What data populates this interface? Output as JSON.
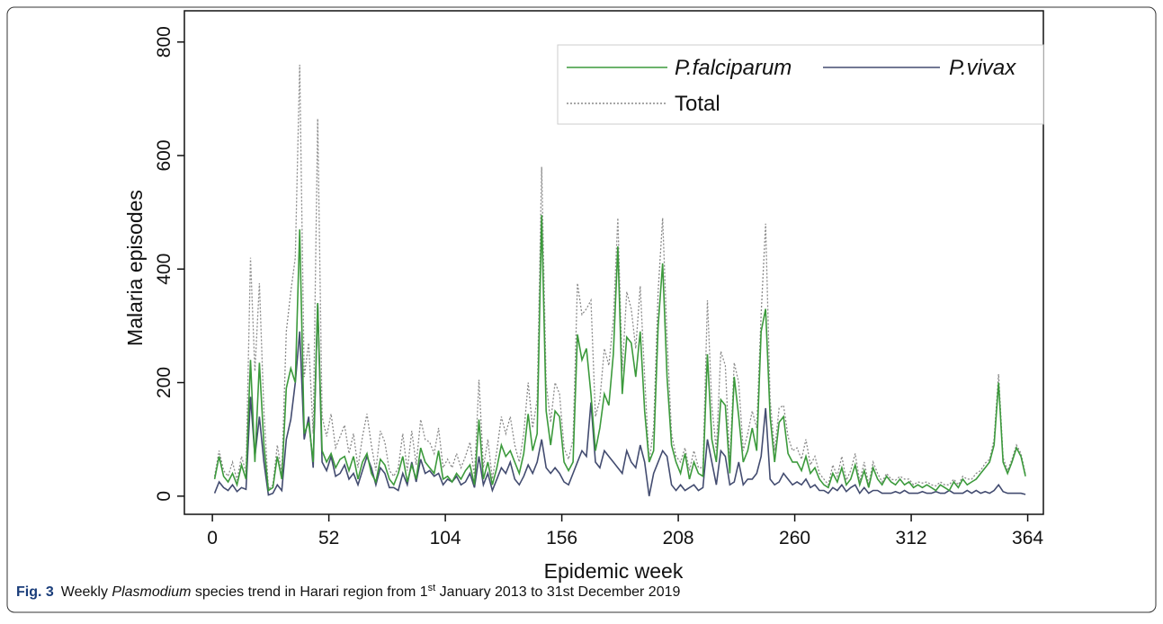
{
  "chart_data": {
    "type": "line",
    "xlabel": "Epidemic week",
    "ylabel": "Malaria episodes",
    "xlim": [
      -12.5,
      371
    ],
    "ylim": [
      -32,
      855
    ],
    "xticks": [
      0,
      52,
      104,
      156,
      208,
      260,
      312,
      364
    ],
    "yticks": [
      0,
      200,
      400,
      600,
      800
    ],
    "legend": "upper right",
    "caption": {
      "label": "Fig. 3",
      "before": "Weekly ",
      "italic": "Plasmodium",
      "middle": " species trend in Harari region from 1",
      "sup": "st",
      "after": " January 2013 to 31st December 2019"
    },
    "x": [
      1,
      3,
      5,
      7,
      9,
      11,
      13,
      15,
      17,
      19,
      21,
      23,
      25,
      27,
      29,
      31,
      33,
      35,
      37,
      39,
      41,
      43,
      45,
      47,
      49,
      51,
      53,
      55,
      57,
      59,
      61,
      63,
      65,
      67,
      69,
      71,
      73,
      75,
      77,
      79,
      81,
      83,
      85,
      87,
      89,
      91,
      93,
      95,
      97,
      99,
      101,
      103,
      105,
      107,
      109,
      111,
      113,
      115,
      117,
      119,
      121,
      123,
      125,
      127,
      129,
      131,
      133,
      135,
      137,
      139,
      141,
      143,
      145,
      147,
      149,
      151,
      153,
      155,
      157,
      159,
      161,
      163,
      165,
      167,
      169,
      171,
      173,
      175,
      177,
      179,
      181,
      183,
      185,
      187,
      189,
      191,
      193,
      195,
      197,
      199,
      201,
      203,
      205,
      207,
      209,
      211,
      213,
      215,
      217,
      219,
      221,
      223,
      225,
      227,
      229,
      231,
      233,
      235,
      237,
      239,
      241,
      243,
      245,
      247,
      249,
      251,
      253,
      255,
      257,
      259,
      261,
      263,
      265,
      267,
      269,
      271,
      273,
      275,
      277,
      279,
      281,
      283,
      285,
      287,
      289,
      291,
      293,
      295,
      297,
      299,
      301,
      303,
      305,
      307,
      309,
      311,
      313,
      315,
      317,
      319,
      321,
      323,
      325,
      327,
      329,
      331,
      333,
      335,
      337,
      339,
      341,
      343,
      345,
      347,
      349,
      351,
      353,
      355,
      357,
      359,
      361,
      363
    ],
    "series": [
      {
        "name": "P.falciparum",
        "color": "#3c9a3c",
        "style": "solid",
        "values": [
          30,
          70,
          35,
          25,
          40,
          20,
          55,
          30,
          240,
          60,
          235,
          90,
          10,
          15,
          70,
          30,
          190,
          225,
          200,
          470,
          110,
          130,
          60,
          340,
          80,
          60,
          75,
          50,
          65,
          70,
          45,
          70,
          30,
          60,
          75,
          40,
          25,
          65,
          55,
          30,
          20,
          40,
          70,
          25,
          55,
          30,
          85,
          60,
          50,
          40,
          80,
          30,
          35,
          25,
          40,
          30,
          45,
          55,
          20,
          135,
          30,
          60,
          20,
          50,
          90,
          70,
          80,
          60,
          40,
          75,
          145,
          80,
          110,
          495,
          150,
          90,
          150,
          140,
          60,
          45,
          60,
          285,
          240,
          260,
          180,
          80,
          120,
          180,
          160,
          250,
          440,
          180,
          280,
          270,
          210,
          290,
          150,
          60,
          80,
          300,
          410,
          210,
          90,
          60,
          40,
          75,
          30,
          60,
          40,
          35,
          250,
          100,
          60,
          170,
          160,
          40,
          210,
          140,
          60,
          80,
          120,
          80,
          290,
          330,
          140,
          60,
          130,
          140,
          75,
          60,
          60,
          45,
          70,
          40,
          50,
          30,
          20,
          15,
          40,
          25,
          50,
          20,
          30,
          55,
          20,
          45,
          15,
          50,
          30,
          20,
          35,
          25,
          20,
          30,
          20,
          25,
          15,
          20,
          15,
          20,
          15,
          10,
          20,
          15,
          10,
          25,
          15,
          30,
          20,
          25,
          30,
          40,
          50,
          60,
          90,
          200,
          60,
          40,
          60,
          85,
          70,
          35
        ]
      },
      {
        "name": "P.vivax",
        "color": "#434c70",
        "style": "solid",
        "values": [
          5,
          25,
          15,
          10,
          20,
          8,
          15,
          12,
          175,
          70,
          140,
          60,
          2,
          5,
          20,
          10,
          100,
          135,
          200,
          290,
          100,
          140,
          50,
          340,
          60,
          45,
          70,
          35,
          40,
          55,
          30,
          40,
          20,
          45,
          70,
          50,
          20,
          50,
          40,
          15,
          15,
          10,
          40,
          20,
          60,
          25,
          65,
          40,
          45,
          35,
          40,
          20,
          30,
          25,
          35,
          20,
          25,
          40,
          15,
          70,
          20,
          40,
          10,
          30,
          50,
          40,
          60,
          30,
          20,
          35,
          55,
          40,
          60,
          100,
          50,
          40,
          50,
          40,
          25,
          20,
          40,
          60,
          80,
          70,
          165,
          60,
          50,
          80,
          70,
          60,
          50,
          40,
          80,
          60,
          50,
          90,
          60,
          0,
          40,
          60,
          80,
          70,
          20,
          10,
          20,
          10,
          15,
          20,
          10,
          15,
          100,
          60,
          20,
          80,
          70,
          20,
          25,
          60,
          20,
          30,
          30,
          40,
          70,
          155,
          30,
          20,
          25,
          40,
          30,
          20,
          25,
          20,
          30,
          15,
          20,
          10,
          10,
          5,
          15,
          10,
          20,
          8,
          15,
          20,
          5,
          15,
          5,
          10,
          10,
          5,
          5,
          5,
          8,
          5,
          10,
          5,
          5,
          5,
          8,
          5,
          5,
          8,
          5,
          5,
          10,
          5,
          5,
          5,
          10,
          5,
          10,
          5,
          8,
          5,
          10,
          20,
          8,
          5,
          5,
          5,
          5,
          3
        ]
      },
      {
        "name": "Total",
        "color": "#8a8a8a",
        "style": "dotted",
        "values": [
          35,
          80,
          45,
          35,
          60,
          28,
          70,
          42,
          420,
          220,
          375,
          150,
          12,
          20,
          90,
          40,
          290,
          360,
          420,
          760,
          210,
          270,
          110,
          665,
          140,
          105,
          145,
          85,
          105,
          125,
          75,
          110,
          50,
          105,
          145,
          90,
          45,
          115,
          95,
          45,
          35,
          50,
          110,
          45,
          115,
          55,
          135,
          100,
          95,
          75,
          120,
          50,
          65,
          50,
          75,
          50,
          70,
          95,
          35,
          205,
          50,
          100,
          30,
          80,
          140,
          110,
          140,
          90,
          60,
          110,
          200,
          120,
          170,
          580,
          200,
          130,
          200,
          180,
          85,
          65,
          100,
          375,
          320,
          330,
          345,
          140,
          170,
          260,
          230,
          310,
          490,
          220,
          360,
          330,
          260,
          370,
          210,
          60,
          120,
          360,
          490,
          280,
          110,
          70,
          60,
          85,
          45,
          80,
          50,
          50,
          345,
          160,
          80,
          255,
          230,
          60,
          235,
          200,
          80,
          110,
          150,
          120,
          320,
          480,
          170,
          80,
          155,
          160,
          105,
          80,
          85,
          65,
          100,
          55,
          70,
          40,
          30,
          20,
          55,
          35,
          70,
          28,
          45,
          75,
          25,
          60,
          20,
          60,
          40,
          25,
          40,
          30,
          28,
          35,
          30,
          30,
          20,
          25,
          23,
          25,
          20,
          18,
          25,
          20,
          20,
          30,
          20,
          35,
          30,
          30,
          40,
          45,
          58,
          65,
          100,
          215,
          68,
          45,
          65,
          90,
          75,
          38
        ]
      }
    ]
  }
}
